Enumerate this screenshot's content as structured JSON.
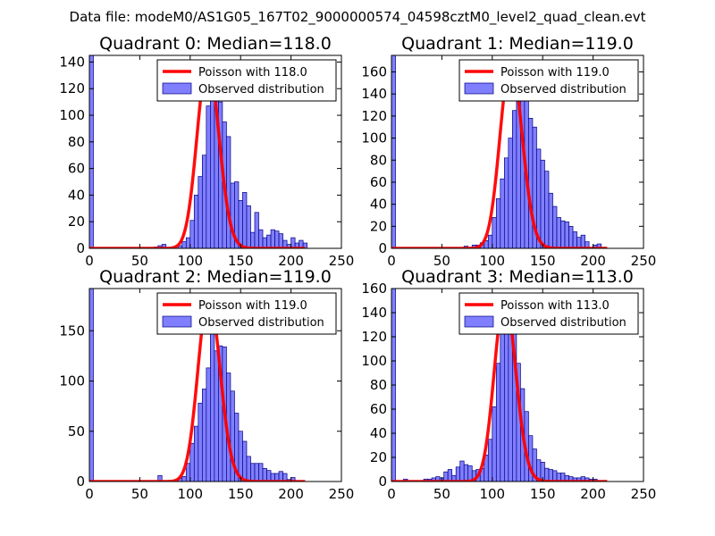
{
  "chart_data": {
    "suptitle": "Data file: modeM0/AS1G05_167T02_9000000574_04598cztM0_level2_quad_clean.evt",
    "colors": {
      "poisson": "#ff0000",
      "hist_fill": "#7f7fff",
      "hist_edge": "#000080"
    },
    "panels": [
      {
        "type": "bar",
        "title": "Quadrant 0: Median=118.0",
        "xlim": [
          0,
          250
        ],
        "ylim": [
          0,
          145
        ],
        "xticks": [
          0,
          50,
          100,
          150,
          200,
          250
        ],
        "yticks": [
          0,
          20,
          40,
          60,
          80,
          100,
          120,
          140
        ],
        "legend": {
          "location": "top-right",
          "line": "Poisson with 118.0",
          "bar": "Observed distribution"
        },
        "poisson_mean": 118,
        "poisson_peak": 140,
        "bin_start": 0,
        "bin_width": 4,
        "values": [
          145,
          0,
          0,
          0,
          0,
          0,
          0,
          0,
          0,
          0,
          0,
          0,
          0,
          0,
          0,
          0,
          1,
          2,
          3,
          0,
          0,
          0,
          2,
          5,
          8,
          21,
          40,
          54,
          70,
          107,
          140,
          125,
          110,
          95,
          84,
          49,
          50,
          36,
          42,
          32,
          12,
          27,
          14,
          8,
          10,
          14,
          13,
          11,
          6,
          3,
          8,
          4,
          6,
          4,
          0,
          0,
          0,
          0,
          0,
          0,
          0,
          0,
          0
        ]
      },
      {
        "type": "bar",
        "title": "Quadrant 1: Median=119.0",
        "xlim": [
          0,
          250
        ],
        "ylim": [
          0,
          175
        ],
        "xticks": [
          0,
          50,
          100,
          150,
          200,
          250
        ],
        "yticks": [
          0,
          20,
          40,
          60,
          80,
          100,
          120,
          140,
          160
        ],
        "legend": {
          "location": "top-right",
          "line": "Poisson with 119.0",
          "bar": "Observed distribution"
        },
        "poisson_mean": 119,
        "poisson_peak": 170,
        "bin_start": 0,
        "bin_width": 4,
        "values": [
          175,
          0,
          0,
          0,
          0,
          0,
          0,
          0,
          0,
          0,
          0,
          0,
          0,
          0,
          0,
          0,
          0,
          0,
          2,
          0,
          3,
          3,
          5,
          7,
          12,
          28,
          45,
          63,
          82,
          100,
          125,
          150,
          165,
          135,
          118,
          110,
          90,
          80,
          70,
          50,
          38,
          28,
          25,
          24,
          20,
          15,
          10,
          12,
          6,
          0,
          3,
          4,
          1,
          0,
          0,
          0,
          0,
          0,
          0,
          0,
          0,
          0,
          0
        ]
      },
      {
        "type": "bar",
        "title": "Quadrant 2: Median=119.0",
        "xlim": [
          0,
          250
        ],
        "ylim": [
          0,
          192
        ],
        "xticks": [
          0,
          50,
          100,
          150,
          200,
          250
        ],
        "yticks": [
          0,
          50,
          100,
          150
        ],
        "legend": {
          "location": "top-right",
          "line": "Poisson with 119.0",
          "bar": "Observed distribution"
        },
        "poisson_mean": 119,
        "poisson_peak": 185,
        "bin_start": 0,
        "bin_width": 4,
        "values": [
          192,
          0,
          0,
          0,
          0,
          0,
          0,
          0,
          0,
          0,
          0,
          0,
          0,
          0,
          0,
          0,
          0,
          6,
          0,
          0,
          0,
          0,
          3,
          5,
          18,
          38,
          55,
          78,
          92,
          113,
          155,
          130,
          135,
          134,
          108,
          90,
          68,
          50,
          40,
          25,
          18,
          18,
          18,
          13,
          11,
          8,
          8,
          10,
          8,
          2,
          4,
          0,
          0,
          0,
          0,
          0,
          0,
          0,
          0,
          0,
          0,
          0,
          0
        ]
      },
      {
        "type": "bar",
        "title": "Quadrant 3: Median=113.0",
        "xlim": [
          0,
          250
        ],
        "ylim": [
          0,
          160
        ],
        "xticks": [
          0,
          50,
          100,
          150,
          200,
          250
        ],
        "yticks": [
          0,
          20,
          40,
          60,
          80,
          100,
          120,
          140,
          160
        ],
        "legend": {
          "location": "top-right",
          "line": "Poisson with 113.0",
          "bar": "Observed distribution"
        },
        "poisson_mean": 113,
        "poisson_peak": 152,
        "bin_start": 0,
        "bin_width": 4,
        "values": [
          160,
          0,
          0,
          2,
          0,
          0,
          0,
          0,
          2,
          2,
          3,
          4,
          3,
          8,
          10,
          5,
          12,
          17,
          14,
          13,
          9,
          10,
          11,
          22,
          35,
          62,
          98,
          140,
          145,
          150,
          140,
          98,
          77,
          58,
          38,
          27,
          18,
          16,
          11,
          10,
          9,
          7,
          7,
          5,
          4,
          3,
          3,
          4,
          3,
          2,
          2,
          0,
          0,
          0,
          0,
          0,
          0,
          0,
          0,
          0,
          0,
          0,
          0
        ]
      }
    ]
  }
}
